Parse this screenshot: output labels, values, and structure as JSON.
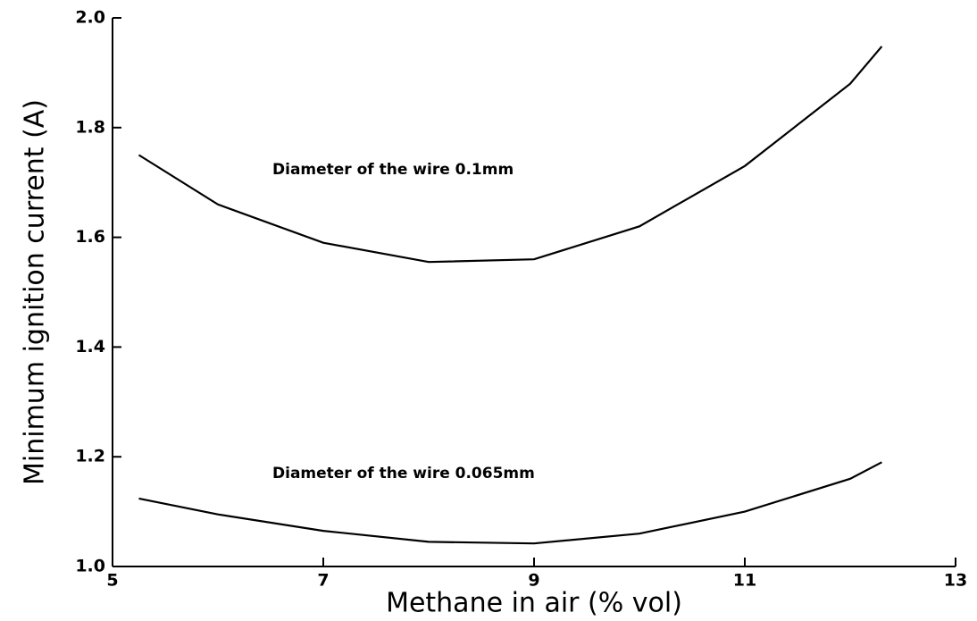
{
  "chart_data": {
    "type": "line",
    "x_label": "Methane in air (% vol)",
    "y_label": "Minimum ignition current (A)",
    "x": [
      5.25,
      6,
      7,
      8,
      9,
      10,
      11,
      12,
      12.3
    ],
    "series": [
      {
        "name": "Diameter of the wire 0.1mm",
        "color": "#000000",
        "values": [
          1.75,
          1.66,
          1.59,
          1.555,
          1.56,
          1.62,
          1.73,
          1.88,
          1.948
        ]
      },
      {
        "name": "Diameter of the wire 0.065mm",
        "color": "#000000",
        "values": [
          1.124,
          1.095,
          1.065,
          1.045,
          1.042,
          1.06,
          1.1,
          1.16,
          1.19
        ]
      }
    ],
    "xlim": [
      5,
      13
    ],
    "xticks": [
      5,
      7,
      9,
      11,
      13
    ],
    "ylim": [
      1,
      2
    ],
    "yticks": [
      {
        "value": 1,
        "label": "1.0"
      },
      1.2,
      1.4,
      1.6,
      1.8,
      {
        "value": 2,
        "label": "2.0"
      }
    ],
    "grid": false
  }
}
